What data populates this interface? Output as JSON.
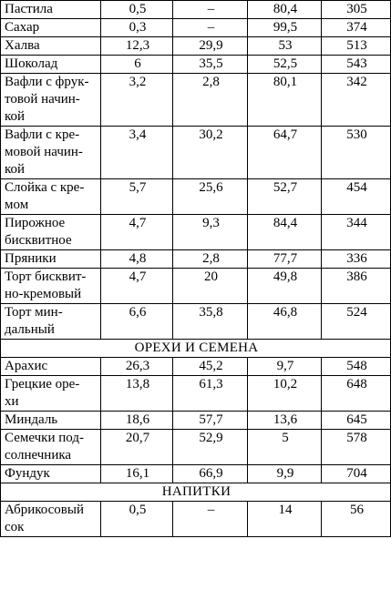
{
  "rows": [
    {
      "type": "item",
      "name": "Пастила",
      "protein": "0,5",
      "fat": "–",
      "carbs": "80,4",
      "kcal": "305"
    },
    {
      "type": "item",
      "name": "Сахар",
      "protein": "0,3",
      "fat": "–",
      "carbs": "99,5",
      "kcal": "374"
    },
    {
      "type": "item",
      "name": "Халва",
      "protein": "12,3",
      "fat": "29,9",
      "carbs": "53",
      "kcal": "513"
    },
    {
      "type": "item",
      "name": "Шоколад",
      "protein": "6",
      "fat": "35,5",
      "carbs": "52,5",
      "kcal": "543"
    },
    {
      "type": "item",
      "name": "Вафли с фрук-\nтовой начин-\nкой",
      "protein": "3,2",
      "fat": "2,8",
      "carbs": "80,1",
      "kcal": "342"
    },
    {
      "type": "item",
      "name": "Вафли с кре-\nмовой начин-\nкой",
      "protein": "3,4",
      "fat": "30,2",
      "carbs": "64,7",
      "kcal": "530"
    },
    {
      "type": "item",
      "name": "Слойка с кре-\nмом",
      "protein": "5,7",
      "fat": "25,6",
      "carbs": "52,7",
      "kcal": "454"
    },
    {
      "type": "item",
      "name": "Пирожное\nбисквитное",
      "protein": "4,7",
      "fat": "9,3",
      "carbs": "84,4",
      "kcal": "344"
    },
    {
      "type": "item",
      "name": "Пряники",
      "protein": "4,8",
      "fat": "2,8",
      "carbs": "77,7",
      "kcal": "336"
    },
    {
      "type": "item",
      "name": "Торт бисквит-\nно-кремовый",
      "protein": "4,7",
      "fat": "20",
      "carbs": "49,8",
      "kcal": "386"
    },
    {
      "type": "item",
      "name": "Торт мин-\nдальный",
      "protein": "6,6",
      "fat": "35,8",
      "carbs": "46,8",
      "kcal": "524"
    },
    {
      "type": "section",
      "title": "ОРЕХИ И СЕМЕНА"
    },
    {
      "type": "item",
      "name": "Арахис",
      "protein": "26,3",
      "fat": "45,2",
      "carbs": "9,7",
      "kcal": "548"
    },
    {
      "type": "item",
      "name": "Грецкие оре-\nхи",
      "protein": "13,8",
      "fat": "61,3",
      "carbs": "10,2",
      "kcal": "648"
    },
    {
      "type": "item",
      "name": "Миндаль",
      "protein": "18,6",
      "fat": "57,7",
      "carbs": "13,6",
      "kcal": "645"
    },
    {
      "type": "item",
      "name": "Семечки под-\nсолнечника",
      "protein": "20,7",
      "fat": "52,9",
      "carbs": "5",
      "kcal": "578"
    },
    {
      "type": "item",
      "name": "Фундук",
      "protein": "16,1",
      "fat": "66,9",
      "carbs": "9,9",
      "kcal": "704"
    },
    {
      "type": "section",
      "title": "НАПИТКИ"
    },
    {
      "type": "item",
      "name": "Абрикосовый\nсок",
      "protein": "0,5",
      "fat": "–",
      "carbs": "14",
      "kcal": "56"
    }
  ]
}
